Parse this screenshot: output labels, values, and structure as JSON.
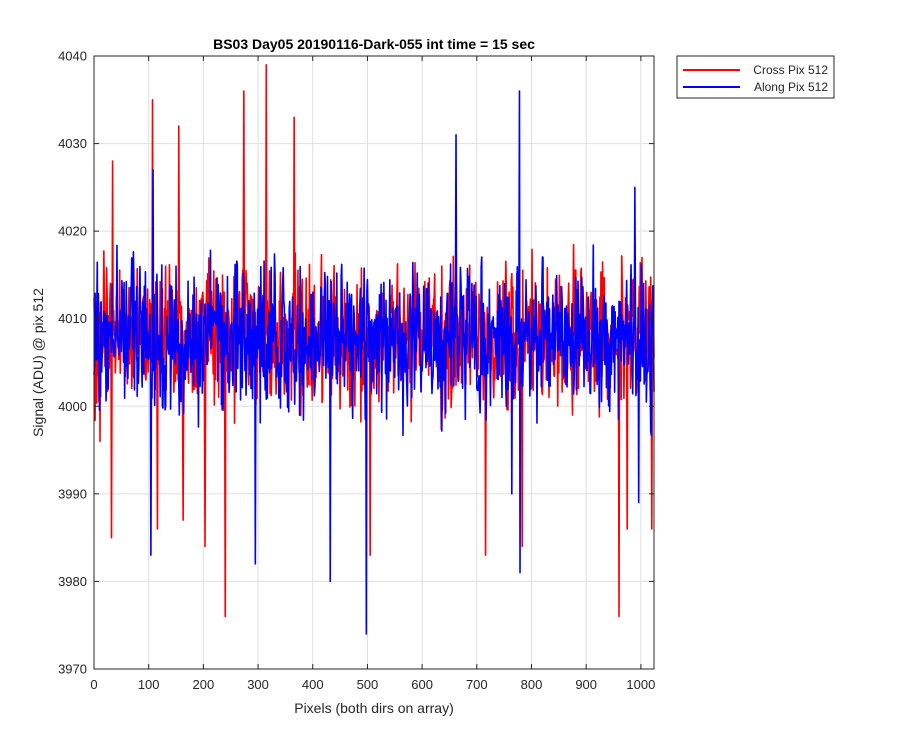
{
  "colors": {
    "background": "#ffffff",
    "grid": "#dfdfdf",
    "axis": "#262626",
    "cross": "#ff0000",
    "along": "#0000ff"
  },
  "chart_data": {
    "type": "line",
    "title": "BS03 Day05 20190116-Dark-055 int time = 15 sec",
    "xlabel": "Pixels (both dirs on array)",
    "ylabel": "Signal (ADU) @ pix 512",
    "xlim": [
      0,
      1024
    ],
    "ylim": [
      3970,
      4040
    ],
    "xticks": [
      0,
      100,
      200,
      300,
      400,
      500,
      600,
      700,
      800,
      900,
      1000
    ],
    "yticks": [
      3970,
      3980,
      3990,
      4000,
      4010,
      4020,
      4030,
      4040
    ],
    "grid": true,
    "legend_position": "outside-top-right",
    "series": [
      {
        "name": "Cross Pix 512",
        "color": "#ff0000",
        "mean": 4008,
        "anchors": [
          {
            "x": 11,
            "y": 3996
          },
          {
            "x": 32,
            "y": 3985
          },
          {
            "x": 34,
            "y": 4028
          },
          {
            "x": 107,
            "y": 4035
          },
          {
            "x": 116,
            "y": 3986
          },
          {
            "x": 155,
            "y": 4032
          },
          {
            "x": 163,
            "y": 3987
          },
          {
            "x": 203,
            "y": 3984
          },
          {
            "x": 240,
            "y": 3976
          },
          {
            "x": 274,
            "y": 4036
          },
          {
            "x": 315,
            "y": 4039
          },
          {
            "x": 366,
            "y": 4033
          },
          {
            "x": 505,
            "y": 3983
          },
          {
            "x": 716,
            "y": 3983
          },
          {
            "x": 783,
            "y": 3984
          },
          {
            "x": 960,
            "y": 3976
          },
          {
            "x": 975,
            "y": 3986
          },
          {
            "x": 1020,
            "y": 3986
          }
        ]
      },
      {
        "name": "Along Pix 512",
        "color": "#0000ff",
        "mean": 4008,
        "anchors": [
          {
            "x": 104,
            "y": 3983
          },
          {
            "x": 108,
            "y": 4027
          },
          {
            "x": 295,
            "y": 3982
          },
          {
            "x": 432,
            "y": 3980
          },
          {
            "x": 498,
            "y": 3974
          },
          {
            "x": 662,
            "y": 4031
          },
          {
            "x": 764,
            "y": 3990
          },
          {
            "x": 778,
            "y": 4036
          },
          {
            "x": 779,
            "y": 3981
          },
          {
            "x": 989,
            "y": 4025
          },
          {
            "x": 996,
            "y": 3989
          }
        ]
      }
    ]
  }
}
